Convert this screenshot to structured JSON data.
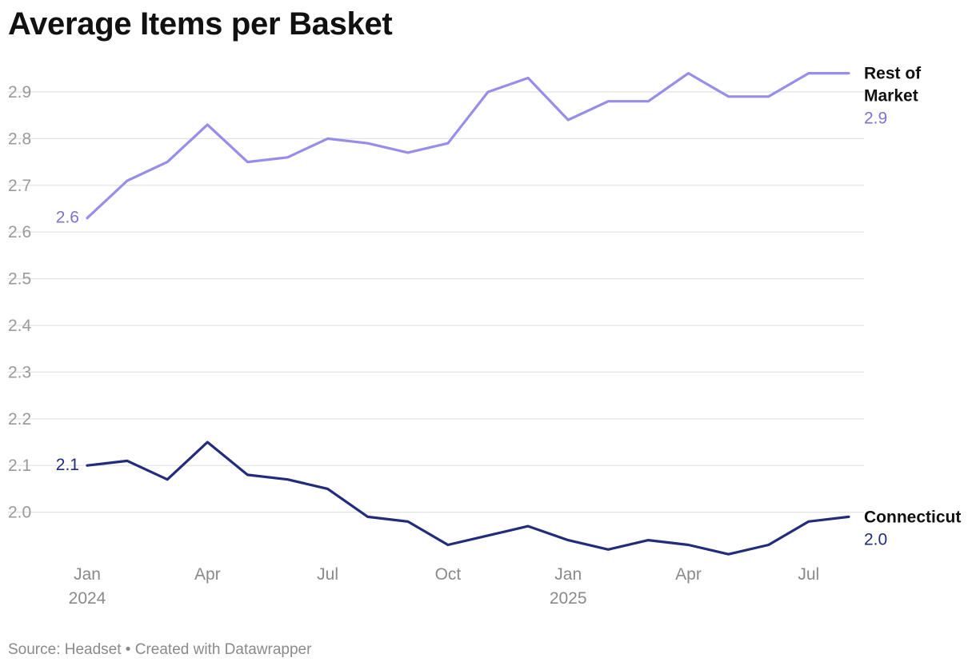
{
  "title": "Average Items per Basket",
  "footer": "Source: Headset • Created with Datawrapper",
  "chart_data": {
    "type": "line",
    "title": "Average Items per Basket",
    "xlabel": "",
    "ylabel": "",
    "ylim": [
      1.9,
      3.0
    ],
    "yticks": [
      "2.9",
      "2.8",
      "2.7",
      "2.6",
      "2.5",
      "2.4",
      "2.3",
      "2.2",
      "2.1",
      "2.0"
    ],
    "ytick_values": [
      2.9,
      2.8,
      2.7,
      2.6,
      2.5,
      2.4,
      2.3,
      2.2,
      2.1,
      2.0
    ],
    "grid": true,
    "x": [
      "2024-01",
      "2024-02",
      "2024-03",
      "2024-04",
      "2024-05",
      "2024-06",
      "2024-07",
      "2024-08",
      "2024-09",
      "2024-10",
      "2024-11",
      "2024-12",
      "2025-01",
      "2025-02",
      "2025-03",
      "2025-04",
      "2025-05",
      "2025-06",
      "2025-07",
      "2025-08"
    ],
    "xticks": [
      {
        "month": "2024-01",
        "label": "Jan",
        "sublabel": "2024"
      },
      {
        "month": "2024-04",
        "label": "Apr",
        "sublabel": ""
      },
      {
        "month": "2024-07",
        "label": "Jul",
        "sublabel": ""
      },
      {
        "month": "2024-10",
        "label": "Oct",
        "sublabel": ""
      },
      {
        "month": "2025-01",
        "label": "Jan",
        "sublabel": "2025"
      },
      {
        "month": "2025-04",
        "label": "Apr",
        "sublabel": ""
      },
      {
        "month": "2025-07",
        "label": "Jul",
        "sublabel": ""
      }
    ],
    "series": [
      {
        "name": "Rest of Market",
        "name_lines": [
          "Rest of",
          "Market"
        ],
        "color": "#968ee8",
        "start_label": "2.6",
        "end_label": "2.9",
        "label_color": "#7b74d4",
        "values": [
          2.63,
          2.71,
          2.75,
          2.83,
          2.75,
          2.76,
          2.8,
          2.79,
          2.77,
          2.79,
          2.9,
          2.93,
          2.84,
          2.88,
          2.88,
          2.94,
          2.89,
          2.89,
          2.94,
          2.94
        ]
      },
      {
        "name": "Connecticut",
        "name_lines": [
          "Connecticut"
        ],
        "color": "#232c7a",
        "start_label": "2.1",
        "end_label": "2.0",
        "label_color": "#232c7a",
        "values": [
          2.1,
          2.11,
          2.07,
          2.15,
          2.08,
          2.07,
          2.05,
          1.99,
          1.98,
          1.93,
          1.95,
          1.97,
          1.94,
          1.92,
          1.94,
          1.93,
          1.91,
          1.93,
          1.98,
          1.99
        ]
      }
    ]
  }
}
